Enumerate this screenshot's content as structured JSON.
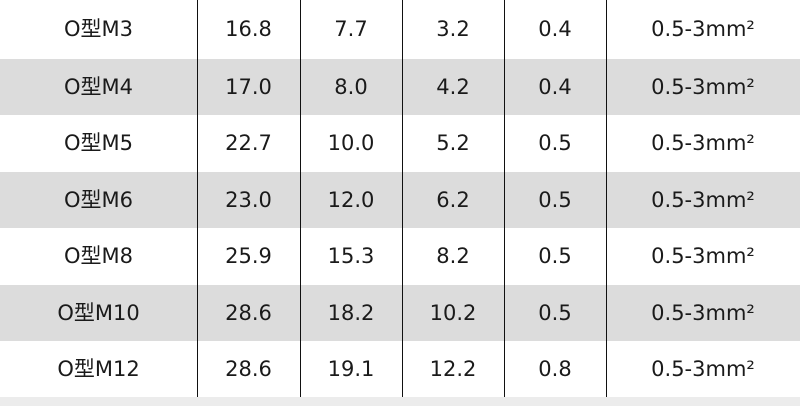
{
  "table": {
    "rows": [
      [
        "O型M3",
        "16.8",
        "7.7",
        "3.2",
        "0.4",
        "0.5-3mm²"
      ],
      [
        "O型M4",
        "17.0",
        "8.0",
        "4.2",
        "0.4",
        "0.5-3mm²"
      ],
      [
        "O型M5",
        "22.7",
        "10.0",
        "5.2",
        "0.5",
        "0.5-3mm²"
      ],
      [
        "O型M6",
        "23.0",
        "12.0",
        "6.2",
        "0.5",
        "0.5-3mm²"
      ],
      [
        "O型M8",
        "25.9",
        "15.3",
        "8.2",
        "0.5",
        "0.5-3mm²"
      ],
      [
        "O型M10",
        "28.6",
        "18.2",
        "10.2",
        "0.5",
        "0.5-3mm²"
      ],
      [
        "O型M12",
        "28.6",
        "19.1",
        "12.2",
        "0.8",
        "0.5-3mm²"
      ]
    ]
  }
}
